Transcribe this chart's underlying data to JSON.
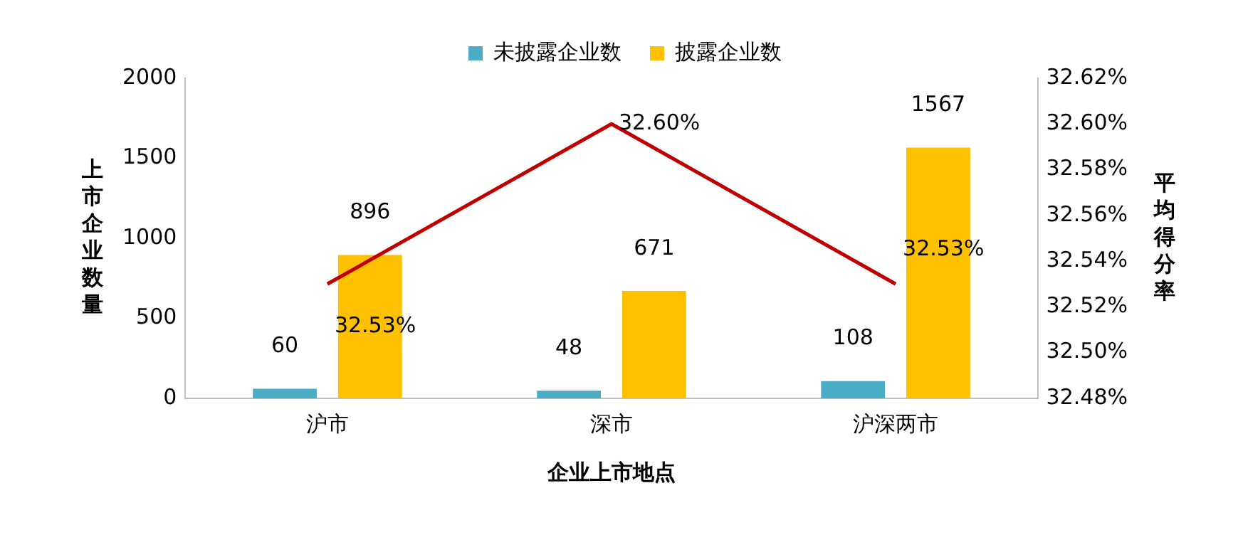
{
  "chart_data": {
    "type": "bar",
    "categories": [
      "沪市",
      "深市",
      "沪深两市"
    ],
    "xlabel": "企业上市地点",
    "ylabel": "上市企业数量",
    "y2label": "平均得分率",
    "series": [
      {
        "name": "未披露企业数",
        "color": "#4bacc6",
        "values": [
          60,
          48,
          108
        ],
        "value_labels": [
          "60",
          "48",
          "108"
        ]
      },
      {
        "name": "披露企业数",
        "color": "#ffc000",
        "values": [
          896,
          671,
          1567
        ],
        "value_labels": [
          "896",
          "671",
          "1567"
        ]
      },
      {
        "type": "line",
        "axis": "y2",
        "color": "#c00000",
        "values": [
          32.53,
          32.6,
          32.53
        ],
        "value_labels": [
          "32.53%",
          "32.60%",
          "32.53%"
        ]
      }
    ],
    "ylim": [
      0,
      2000
    ],
    "yticks": [
      0,
      500,
      1000,
      1500,
      2000
    ],
    "y2lim": [
      32.48,
      32.62
    ],
    "y2ticks": [
      {
        "value": 32.48,
        "label": "32.48%"
      },
      {
        "value": 32.5,
        "label": "32.50%"
      },
      {
        "value": 32.52,
        "label": "32.52%"
      },
      {
        "value": 32.54,
        "label": "32.54%"
      },
      {
        "value": 32.56,
        "label": "32.56%"
      },
      {
        "value": 32.58,
        "label": "32.58%"
      },
      {
        "value": 32.6,
        "label": "32.60%"
      },
      {
        "value": 32.62,
        "label": "32.62%"
      }
    ],
    "grid": false,
    "legend": "top",
    "marker": "none",
    "line_style": "solid"
  }
}
